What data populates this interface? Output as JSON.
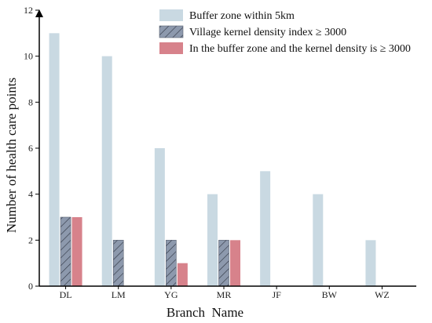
{
  "chart_data": {
    "type": "bar",
    "title": "",
    "xlabel": "Branch  Name",
    "ylabel": "Number of health care points",
    "ylim": [
      0,
      12
    ],
    "yticks": [
      0,
      2,
      4,
      6,
      8,
      10,
      12
    ],
    "grid": false,
    "legend_position": "top-right",
    "categories": [
      "DL",
      "LM",
      "YG",
      "MR",
      "JF",
      "BW",
      "WZ"
    ],
    "series": [
      {
        "name": "Buffer zone within 5km",
        "values": [
          11,
          10,
          6,
          4,
          5,
          4,
          2
        ],
        "color": "#c9d9e2",
        "pattern": "solid"
      },
      {
        "name": "Village kernel density index ≥ 3000",
        "values": [
          3,
          2,
          2,
          2,
          0,
          0,
          0
        ],
        "color": "#8d99ad",
        "pattern": "hatch"
      },
      {
        "name": "In the buffer zone and the kernel density is ≥ 3000",
        "values": [
          3,
          0,
          1,
          2,
          0,
          0,
          0
        ],
        "color": "#d7828b",
        "pattern": "solid"
      }
    ]
  }
}
